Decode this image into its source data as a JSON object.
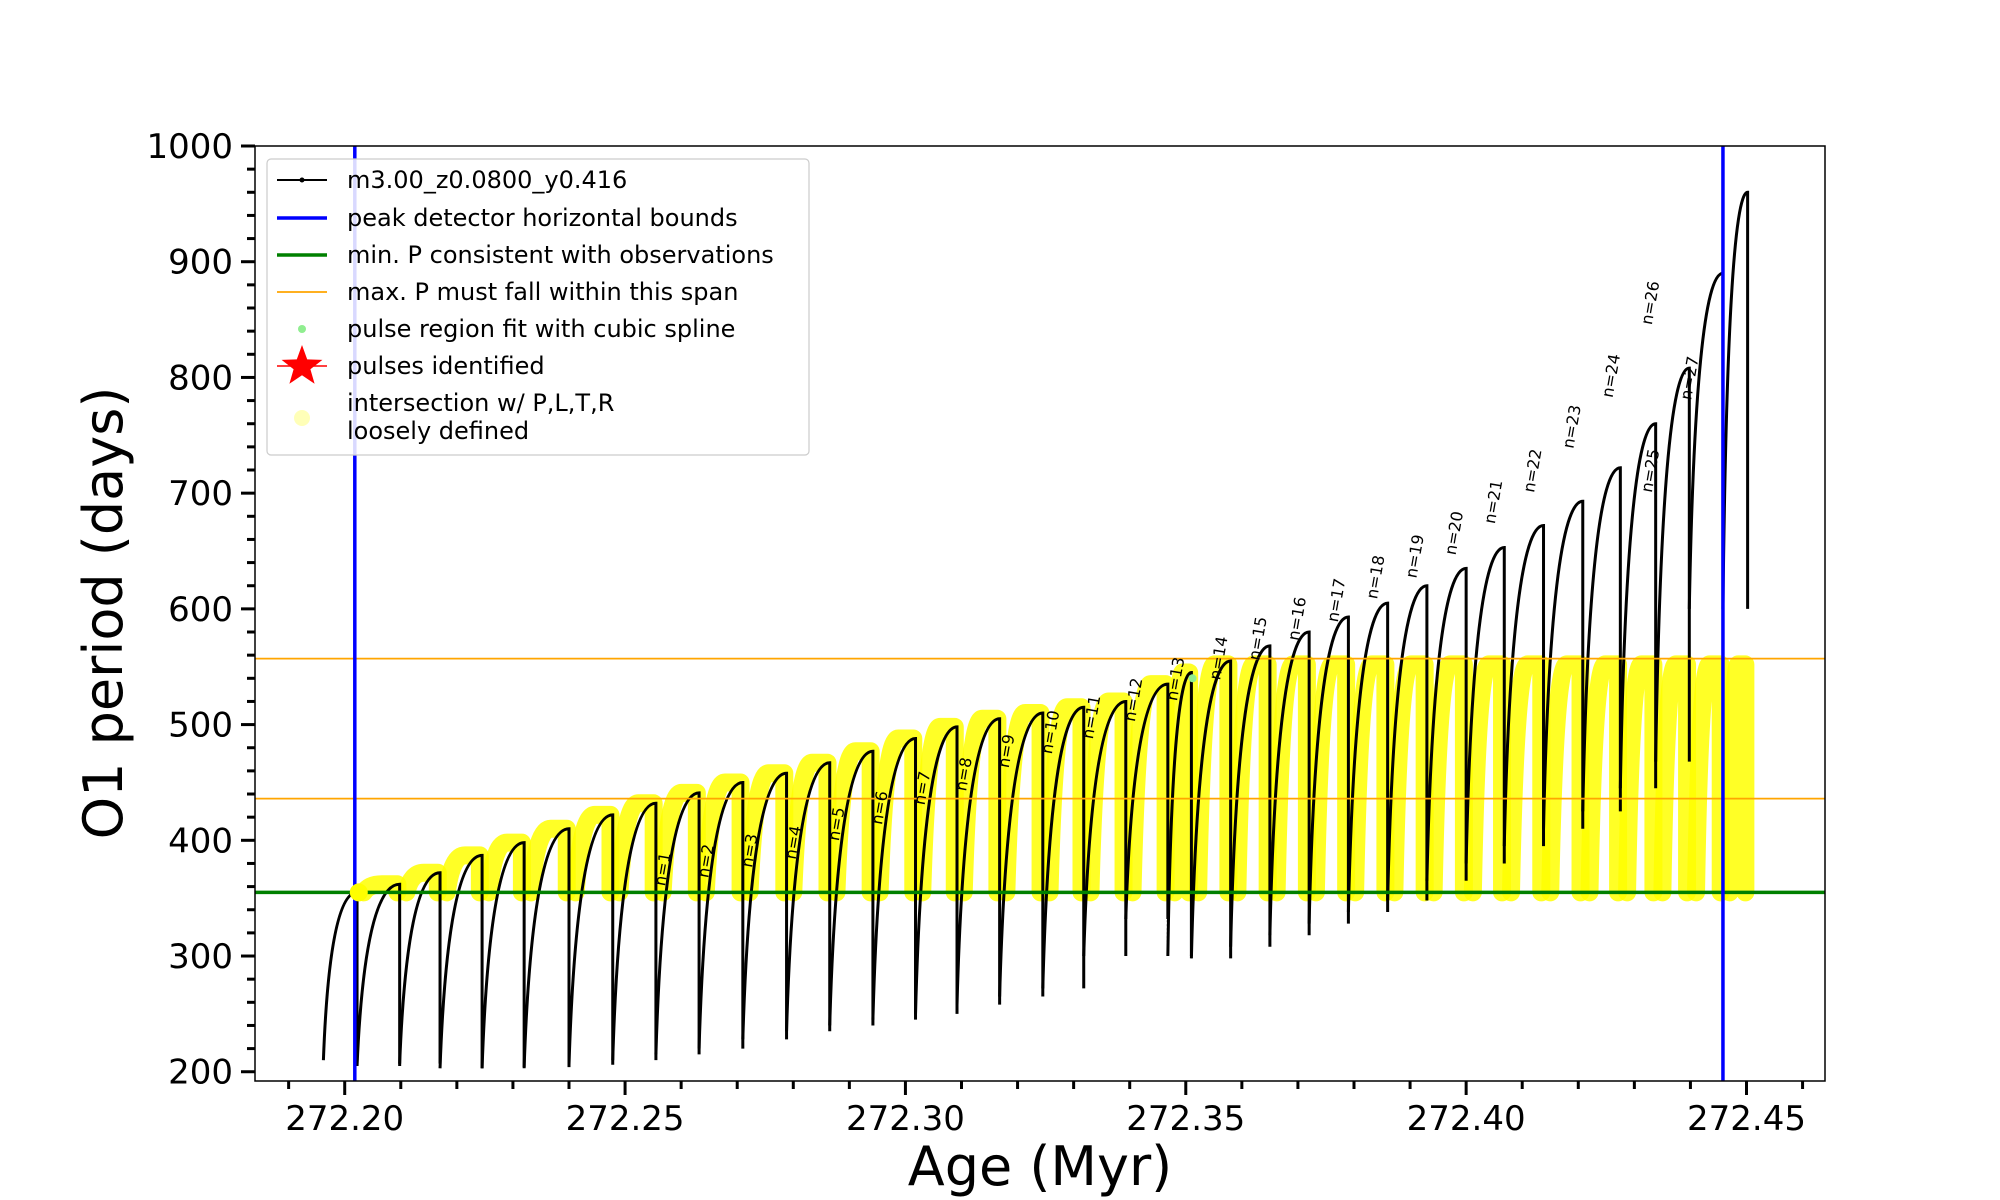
{
  "chart_data": {
    "type": "line",
    "xlabel": "Age (Myr)",
    "ylabel": "O1 period (days)",
    "xlim": [
      272.184,
      272.464
    ],
    "ylim": [
      192,
      1000
    ],
    "grid": false,
    "legend_placement": "top-left",
    "xticks": [
      "272.20",
      "272.25",
      "272.30",
      "272.35",
      "272.40",
      "272.45"
    ],
    "xtick_values": [
      272.2,
      272.25,
      272.3,
      272.35,
      272.4,
      272.45
    ],
    "yticks": [
      "200",
      "300",
      "400",
      "500",
      "600",
      "700",
      "800",
      "900",
      "1000"
    ],
    "ytick_values": [
      200,
      300,
      400,
      500,
      600,
      700,
      800,
      900,
      1000
    ],
    "vertical_lines": [
      272.2018,
      272.4458
    ],
    "horizontal_lines": {
      "min_period": 355,
      "max_period_span": [
        436,
        557
      ]
    },
    "colors": {
      "model": "#000000",
      "peak_bounds": "#0000ff",
      "min_period": "#008000",
      "max_period": "#ffa500",
      "spline": "#90ee90",
      "pulses": "#ff0000",
      "intersection": "#ffff00"
    },
    "legend": [
      {
        "label": "m3.00_z0.0800_y0.416",
        "marker": "black-line-dot"
      },
      {
        "label": "peak detector horizontal bounds",
        "marker": "blue-line"
      },
      {
        "label": "min. P consistent with observations",
        "marker": "green-line"
      },
      {
        "label": "max. P must fall within this span",
        "marker": "orange-line"
      },
      {
        "label": "pulse region fit with cubic spline",
        "marker": "lightgreen-dot"
      },
      {
        "label": "pulses identified",
        "marker": "red-star"
      },
      {
        "label": "intersection w/ P,L,T,R",
        "marker": "yellow-dot"
      },
      {
        "label": "loosely defined",
        "marker": "none"
      }
    ],
    "series": [
      {
        "name": "m3.00_z0.0800_y0.416",
        "pulses": [
          {
            "start": 272.1962,
            "end": 272.2022,
            "min": 210,
            "max": 355
          },
          {
            "start": 272.2022,
            "end": 272.2098,
            "min": 205,
            "max": 362
          },
          {
            "start": 272.2098,
            "end": 272.217,
            "min": 207,
            "max": 372
          },
          {
            "start": 272.217,
            "end": 272.2245,
            "min": 203,
            "max": 387
          },
          {
            "start": 272.2245,
            "end": 272.232,
            "min": 203,
            "max": 398
          },
          {
            "start": 272.232,
            "end": 272.24,
            "min": 204,
            "max": 410
          },
          {
            "start": 272.24,
            "end": 272.2478,
            "min": 206,
            "max": 422
          },
          {
            "start": 272.2478,
            "end": 272.2555,
            "min": 210,
            "max": 432
          },
          {
            "start": 272.2555,
            "end": 272.2632,
            "min": 215,
            "max": 441
          },
          {
            "start": 272.2632,
            "end": 272.271,
            "min": 220,
            "max": 450
          },
          {
            "start": 272.271,
            "end": 272.2788,
            "min": 228,
            "max": 458
          },
          {
            "start": 272.2788,
            "end": 272.2865,
            "min": 235,
            "max": 467
          },
          {
            "start": 272.2865,
            "end": 272.2942,
            "min": 240,
            "max": 477
          },
          {
            "start": 272.2942,
            "end": 272.3018,
            "min": 245,
            "max": 488
          },
          {
            "start": 272.3018,
            "end": 272.3092,
            "min": 250,
            "max": 498
          },
          {
            "start": 272.3092,
            "end": 272.3168,
            "min": 258,
            "max": 505
          },
          {
            "start": 272.3168,
            "end": 272.3245,
            "min": 265,
            "max": 510
          },
          {
            "start": 272.3245,
            "end": 272.3318,
            "min": 272,
            "max": 515
          },
          {
            "start": 272.3318,
            "end": 272.3393,
            "min": 300,
            "max": 520
          },
          {
            "start": 272.3393,
            "end": 272.3468,
            "min": 332,
            "max": 535
          },
          {
            "start": 272.3468,
            "end": 272.351,
            "min": 300,
            "max": 545
          },
          {
            "start": 272.351,
            "end": 272.358,
            "min": 298,
            "max": 555
          },
          {
            "start": 272.358,
            "end": 272.365,
            "min": 308,
            "max": 568
          },
          {
            "start": 272.365,
            "end": 272.372,
            "min": 318,
            "max": 580
          },
          {
            "start": 272.372,
            "end": 272.379,
            "min": 328,
            "max": 593
          },
          {
            "start": 272.379,
            "end": 272.386,
            "min": 338,
            "max": 605
          },
          {
            "start": 272.386,
            "end": 272.393,
            "min": 348,
            "max": 620
          },
          {
            "start": 272.393,
            "end": 272.4,
            "min": 365,
            "max": 635
          },
          {
            "start": 272.4,
            "end": 272.4068,
            "min": 380,
            "max": 653
          },
          {
            "start": 272.4068,
            "end": 272.4138,
            "min": 395,
            "max": 672
          },
          {
            "start": 272.4138,
            "end": 272.4208,
            "min": 410,
            "max": 693
          },
          {
            "start": 272.4208,
            "end": 272.4275,
            "min": 425,
            "max": 722
          },
          {
            "start": 272.4275,
            "end": 272.4338,
            "min": 445,
            "max": 760
          },
          {
            "start": 272.4338,
            "end": 272.4398,
            "min": 468,
            "max": 808
          },
          {
            "start": 272.4398,
            "end": 272.4458,
            "min": 600,
            "max": 890
          },
          {
            "start": 272.4458,
            "end": 272.4502,
            "min": 600,
            "max": 960
          }
        ]
      }
    ],
    "pulse_labels": [
      {
        "text": "n=1",
        "x": 272.2555,
        "y": 360
      },
      {
        "text": "n=2",
        "x": 272.2632,
        "y": 367
      },
      {
        "text": "n=3",
        "x": 272.271,
        "y": 376
      },
      {
        "text": "n=4",
        "x": 272.2788,
        "y": 383
      },
      {
        "text": "n=5",
        "x": 272.2865,
        "y": 399
      },
      {
        "text": "n=6",
        "x": 272.2942,
        "y": 413
      },
      {
        "text": "n=7",
        "x": 272.3018,
        "y": 430
      },
      {
        "text": "n=8",
        "x": 272.3092,
        "y": 442
      },
      {
        "text": "n=9",
        "x": 272.3168,
        "y": 462
      },
      {
        "text": "n=10",
        "x": 272.3245,
        "y": 474
      },
      {
        "text": "n=11",
        "x": 272.3318,
        "y": 487
      },
      {
        "text": "n=12",
        "x": 272.3393,
        "y": 502
      },
      {
        "text": "n=13",
        "x": 272.3468,
        "y": 520
      },
      {
        "text": "n=14",
        "x": 272.3545,
        "y": 538
      },
      {
        "text": "n=15",
        "x": 272.3615,
        "y": 555
      },
      {
        "text": "n=16",
        "x": 272.3685,
        "y": 572
      },
      {
        "text": "n=17",
        "x": 272.3755,
        "y": 588
      },
      {
        "text": "n=18",
        "x": 272.3825,
        "y": 608
      },
      {
        "text": "n=19",
        "x": 272.3895,
        "y": 626
      },
      {
        "text": "n=20",
        "x": 272.3965,
        "y": 646
      },
      {
        "text": "n=21",
        "x": 272.4035,
        "y": 673
      },
      {
        "text": "n=22",
        "x": 272.4105,
        "y": 700
      },
      {
        "text": "n=23",
        "x": 272.4175,
        "y": 738
      },
      {
        "text": "n=24",
        "x": 272.4245,
        "y": 782
      },
      {
        "text": "n=25",
        "x": 272.4315,
        "y": 700
      },
      {
        "text": "n=26",
        "x": 272.4315,
        "y": 845
      },
      {
        "text": "n=27",
        "x": 272.4385,
        "y": 780
      }
    ]
  }
}
